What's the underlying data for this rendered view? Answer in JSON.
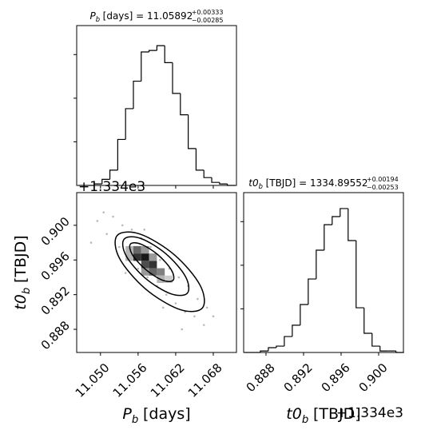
{
  "chart_data": [
    {
      "type": "histogram",
      "title": {
        "symbol": "P",
        "sub": "b",
        "text": "[days] = 11.05892",
        "upper": "+0.00333",
        "lower": "−0.00285"
      },
      "bins": [
        11.0465,
        11.04775,
        11.049,
        11.05025,
        11.0515,
        11.05275,
        11.054,
        11.05525,
        11.0565,
        11.05775,
        11.059,
        11.06025,
        11.0615,
        11.06275,
        11.064,
        11.06525,
        11.0665,
        11.06775,
        11.069,
        11.07025,
        11.0715
      ],
      "counts": [
        0,
        0,
        7,
        28,
        70,
        211,
        352,
        478,
        612,
        619,
        641,
        563,
        422,
        324,
        169,
        70,
        36,
        14,
        7,
        0
      ],
      "color": "#000000",
      "xlim": [
        11.0462,
        11.0717
      ],
      "xticks": [
        11.05,
        11.056,
        11.062,
        11.068
      ],
      "show_xtick_labels": false,
      "ylim": [
        0,
        733
      ],
      "yticks": [
        200,
        400,
        600
      ]
    },
    {
      "type": "scatter",
      "xlabel": {
        "symbol": "P",
        "sub": "b",
        "text": "[days]"
      },
      "ylabel": {
        "symbol": "t0",
        "sub": "b",
        "text": "[TBJD]"
      },
      "y_offset": "+1.334e3",
      "xlim": [
        11.0462,
        11.0717
      ],
      "xticks": [
        {
          "value": 11.05,
          "label": "11.050"
        },
        11.056,
        11.062,
        11.068
      ],
      "ylim": [
        0.88533,
        0.90377
      ],
      "yticks": [
        0.888,
        0.892,
        0.896,
        {
          "value": 0.9,
          "label": "0.900"
        }
      ],
      "points": {
        "color": "#a8a8a8",
        "x": [
          11.0495,
          11.051,
          11.052,
          11.053,
          11.0535,
          11.0545,
          11.055,
          11.056,
          11.0565,
          11.0575,
          11.058,
          11.059,
          11.0595,
          11.0605,
          11.061,
          11.062,
          11.0625,
          11.0635,
          11.064,
          11.065,
          11.0655,
          11.0665,
          11.067,
          11.0505,
          11.054,
          11.06,
          11.063,
          11.0485,
          11.068,
          11.057
        ],
        "y": [
          0.9005,
          0.899,
          0.901,
          0.8975,
          0.9,
          0.896,
          0.8995,
          0.895,
          0.8985,
          0.894,
          0.8975,
          0.893,
          0.896,
          0.892,
          0.895,
          0.891,
          0.894,
          0.89,
          0.893,
          0.8895,
          0.8915,
          0.8885,
          0.8905,
          0.9015,
          0.8945,
          0.8905,
          0.888,
          0.898,
          0.8895,
          0.8995
        ]
      },
      "density": {
        "x": [
          11.054625,
          11.055875,
          11.055875,
          11.057125,
          11.057125,
          11.058375,
          11.058375,
          11.059625,
          11.059625,
          11.057125,
          11.054625,
          11.058375,
          11.060875,
          11.057125
        ],
        "y": [
          0.897175,
          0.897175,
          0.896325,
          0.896325,
          0.895475,
          0.895475,
          0.894625,
          0.894625,
          0.893775,
          0.897175,
          0.896325,
          0.896325,
          0.893775,
          0.894625
        ],
        "values": [
          0.3,
          0.6,
          0.8,
          0.9,
          0.7,
          0.8,
          0.6,
          0.5,
          0.3,
          0.4,
          0.3,
          0.4,
          0.2,
          0.4
        ]
      },
      "contours": [
        {
          "color": "#000000",
          "x": [
            11.06159,
            11.05989,
            11.05719,
            11.05507,
            11.05478,
            11.05648,
            11.05918,
            11.0613
          ],
          "y": [
            0.89366,
            0.89367,
            0.89491,
            0.89663,
            0.89784,
            0.89782,
            0.89659,
            0.89486
          ]
        },
        {
          "color": "#000000",
          "x": [
            11.06387,
            11.06122,
            11.05717,
            11.05408,
            11.05377,
            11.05643,
            11.06048,
            11.06357
          ],
          "y": [
            0.89218,
            0.8921,
            0.89389,
            0.8965,
            0.8984,
            0.89848,
            0.89669,
            0.89408
          ]
        },
        {
          "color": "#000000",
          "x": [
            11.06626,
            11.06264,
            11.05715,
            11.05302,
            11.05266,
            11.05629,
            11.06177,
            11.0659
          ],
          "y": [
            0.89046,
            0.89029,
            0.89268,
            0.89621,
            0.89883,
            0.89899,
            0.89661,
            0.89308
          ]
        }
      ]
    },
    {
      "type": "histogram",
      "title": {
        "symbol": "t0",
        "sub": "b",
        "text": "[TBJD] = 1334.89552",
        "upper": "+0.00194",
        "lower": "−0.00253"
      },
      "xlabel": {
        "symbol": "t0",
        "sub": "b",
        "text": "[TBJD]"
      },
      "x_offset": "+1.334e3",
      "bins": [
        0.8857,
        0.88655,
        0.8874,
        0.88825,
        0.8891,
        0.88995,
        0.8908,
        0.89165,
        0.8925,
        0.89335,
        0.8942,
        0.89505,
        0.8959,
        0.89675,
        0.8976,
        0.89845,
        0.8993,
        0.90015,
        0.901,
        0.90185,
        0.9027
      ],
      "counts": [
        0,
        0,
        7,
        22,
        29,
        73,
        125,
        220,
        337,
        469,
        586,
        623,
        660,
        513,
        205,
        88,
        29,
        7,
        7,
        0
      ],
      "color": "#000000",
      "xlim": [
        0.88562,
        0.90264
      ],
      "xticks": [
        0.888,
        0.892,
        0.896,
        {
          "value": 0.9,
          "label": "0.900"
        }
      ],
      "show_xtick_labels": true,
      "ylim": [
        0,
        733
      ],
      "yticks": [
        200,
        400,
        600
      ]
    }
  ]
}
